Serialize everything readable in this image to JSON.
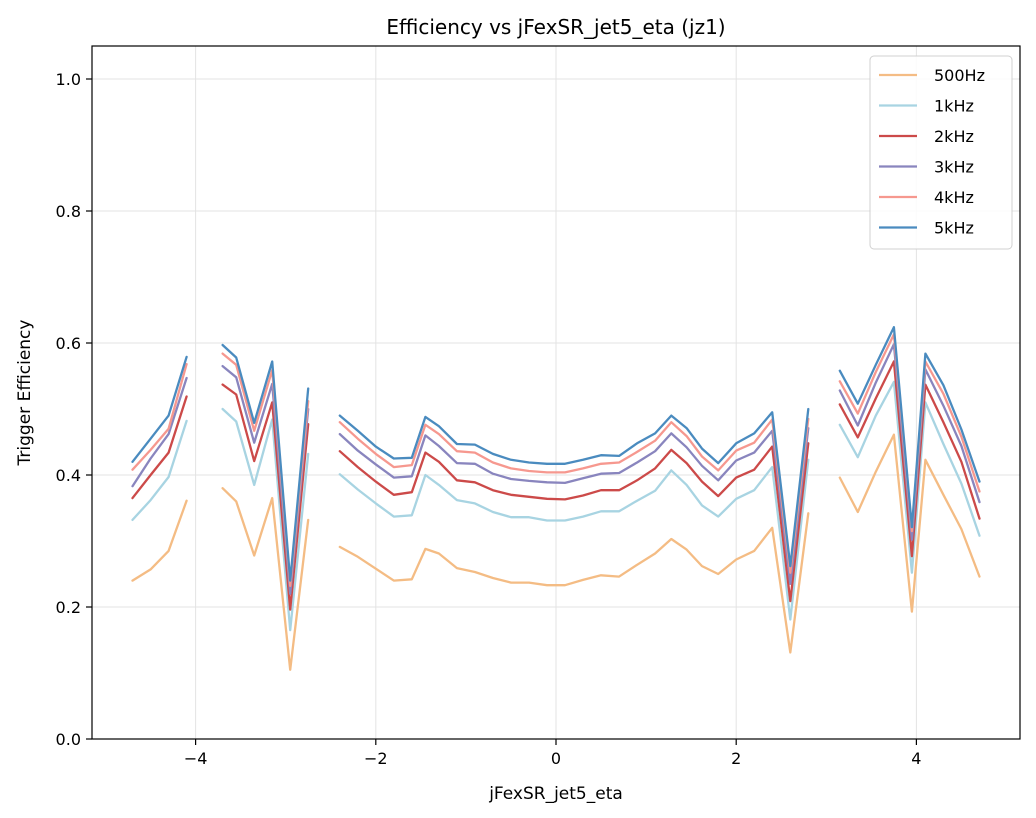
{
  "chart_data": {
    "type": "line",
    "title": "Efficiency vs jFexSR_jet5_eta (jz1)",
    "xlabel": "jFexSR_jet5_eta",
    "ylabel": "Trigger Efficiency",
    "xlim": [
      -5.15,
      5.15
    ],
    "ylim": [
      0.0,
      1.05
    ],
    "xticks": [
      -4,
      -2,
      0,
      2,
      4
    ],
    "xtick_labels": [
      "−4",
      "−2",
      "0",
      "2",
      "4"
    ],
    "yticks": [
      0.0,
      0.2,
      0.4,
      0.6,
      0.8,
      1.0
    ],
    "ytick_labels": [
      "0.0",
      "0.2",
      "0.4",
      "0.6",
      "0.8",
      "1.0"
    ],
    "grid": true,
    "legend_position": "top-right",
    "x": [
      -4.7,
      -4.5,
      -4.3,
      -4.1,
      null,
      -3.7,
      -3.55,
      -3.35,
      -3.15,
      -2.95,
      -2.75,
      null,
      -2.4,
      -2.2,
      -2.0,
      -1.8,
      -1.6,
      -1.45,
      -1.3,
      -1.1,
      -0.9,
      -0.7,
      -0.5,
      -0.3,
      -0.1,
      0.1,
      0.3,
      0.5,
      0.7,
      0.9,
      1.1,
      1.28,
      1.45,
      1.62,
      1.8,
      2.0,
      2.2,
      2.4,
      2.6,
      2.8,
      null,
      3.15,
      3.35,
      3.55,
      3.75,
      3.95,
      4.1,
      4.3,
      4.5,
      4.7
    ],
    "series": [
      {
        "name": "500Hz",
        "color": "#f4bc84",
        "values": [
          0.24,
          0.257,
          0.285,
          0.361,
          null,
          0.38,
          0.36,
          0.278,
          0.365,
          0.105,
          0.332,
          null,
          0.291,
          0.276,
          0.258,
          0.24,
          0.242,
          0.288,
          0.281,
          0.259,
          0.253,
          0.244,
          0.237,
          0.237,
          0.233,
          0.233,
          0.241,
          0.248,
          0.246,
          0.264,
          0.281,
          0.303,
          0.287,
          0.262,
          0.25,
          0.272,
          0.285,
          0.32,
          0.131,
          0.342,
          null,
          0.396,
          0.344,
          0.405,
          0.461,
          0.193,
          0.423,
          0.37,
          0.318,
          0.246
        ]
      },
      {
        "name": "1kHz",
        "color": "#a8d4e2",
        "values": [
          0.332,
          0.362,
          0.397,
          0.482,
          null,
          0.5,
          0.481,
          0.385,
          0.484,
          0.165,
          0.432,
          null,
          0.401,
          0.378,
          0.357,
          0.337,
          0.339,
          0.4,
          0.385,
          0.362,
          0.357,
          0.344,
          0.336,
          0.336,
          0.331,
          0.331,
          0.337,
          0.345,
          0.345,
          0.361,
          0.376,
          0.407,
          0.385,
          0.354,
          0.337,
          0.364,
          0.377,
          0.412,
          0.181,
          0.423,
          null,
          0.476,
          0.427,
          0.49,
          0.541,
          0.252,
          0.51,
          0.447,
          0.387,
          0.308
        ]
      },
      {
        "name": "2kHz",
        "color": "#cc4a49",
        "values": [
          0.365,
          0.4,
          0.434,
          0.519,
          null,
          0.537,
          0.522,
          0.421,
          0.51,
          0.196,
          0.477,
          null,
          0.436,
          0.412,
          0.39,
          0.37,
          0.374,
          0.434,
          0.42,
          0.392,
          0.389,
          0.377,
          0.37,
          0.367,
          0.364,
          0.363,
          0.369,
          0.377,
          0.377,
          0.392,
          0.41,
          0.438,
          0.418,
          0.39,
          0.368,
          0.396,
          0.408,
          0.443,
          0.209,
          0.448,
          null,
          0.507,
          0.457,
          0.516,
          0.572,
          0.277,
          0.537,
          0.48,
          0.42,
          0.334
        ]
      },
      {
        "name": "3kHz",
        "color": "#8985be",
        "values": [
          0.383,
          0.425,
          0.462,
          0.547,
          null,
          0.565,
          0.548,
          0.449,
          0.538,
          0.22,
          0.5,
          null,
          0.462,
          0.437,
          0.416,
          0.396,
          0.398,
          0.46,
          0.444,
          0.418,
          0.417,
          0.402,
          0.394,
          0.391,
          0.389,
          0.388,
          0.395,
          0.402,
          0.403,
          0.419,
          0.436,
          0.463,
          0.442,
          0.414,
          0.392,
          0.422,
          0.434,
          0.467,
          0.235,
          0.471,
          null,
          0.528,
          0.475,
          0.54,
          0.598,
          0.302,
          0.56,
          0.505,
          0.444,
          0.359
        ]
      },
      {
        "name": "4kHz",
        "color": "#f6988f",
        "values": [
          0.408,
          0.438,
          0.47,
          0.568,
          null,
          0.584,
          0.567,
          0.467,
          0.559,
          0.232,
          0.512,
          null,
          0.48,
          0.455,
          0.432,
          0.412,
          0.415,
          0.476,
          0.462,
          0.436,
          0.434,
          0.419,
          0.41,
          0.406,
          0.404,
          0.404,
          0.41,
          0.417,
          0.419,
          0.435,
          0.452,
          0.48,
          0.459,
          0.428,
          0.407,
          0.437,
          0.449,
          0.484,
          0.252,
          0.485,
          null,
          0.542,
          0.493,
          0.556,
          0.613,
          0.315,
          0.572,
          0.523,
          0.458,
          0.375
        ]
      },
      {
        "name": "5kHz",
        "color": "#4a8bbf",
        "values": [
          0.42,
          0.455,
          0.49,
          0.579,
          null,
          0.597,
          0.578,
          0.479,
          0.572,
          0.24,
          0.531,
          null,
          0.49,
          0.467,
          0.443,
          0.425,
          0.426,
          0.488,
          0.474,
          0.447,
          0.446,
          0.432,
          0.423,
          0.419,
          0.417,
          0.417,
          0.423,
          0.43,
          0.429,
          0.448,
          0.463,
          0.49,
          0.471,
          0.44,
          0.418,
          0.448,
          0.463,
          0.495,
          0.262,
          0.5,
          null,
          0.558,
          0.508,
          0.567,
          0.624,
          0.321,
          0.584,
          0.536,
          0.469,
          0.39
        ]
      }
    ]
  }
}
